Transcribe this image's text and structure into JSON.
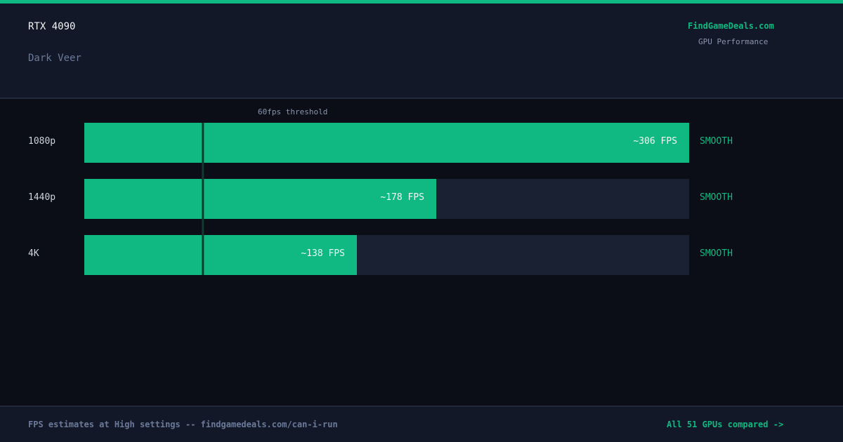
{
  "header": {
    "gpu": "RTX 4090",
    "game": "Dark Veer",
    "brand": "FindGameDeals.com",
    "brand_sub": "GPU Performance"
  },
  "colors": {
    "accent": "#10b981",
    "bar_track": "#1a2133",
    "background": "#0b0e17",
    "panel": "#121827"
  },
  "chart_data": {
    "type": "bar",
    "orientation": "horizontal",
    "categories": [
      "1080p",
      "1440p",
      "4K"
    ],
    "values": [
      306,
      178,
      138
    ],
    "value_labels": [
      "~306 FPS",
      "~178 FPS",
      "~138 FPS"
    ],
    "status": [
      "SMOOTH",
      "SMOOTH",
      "SMOOTH"
    ],
    "threshold": {
      "value": 60,
      "label": "60fps threshold"
    },
    "xlim": [
      0,
      306
    ],
    "grid": false
  },
  "footer": {
    "note": "FPS estimates at High settings -- findgamedeals.com/can-i-run",
    "link": "All 51 GPUs compared ->"
  }
}
